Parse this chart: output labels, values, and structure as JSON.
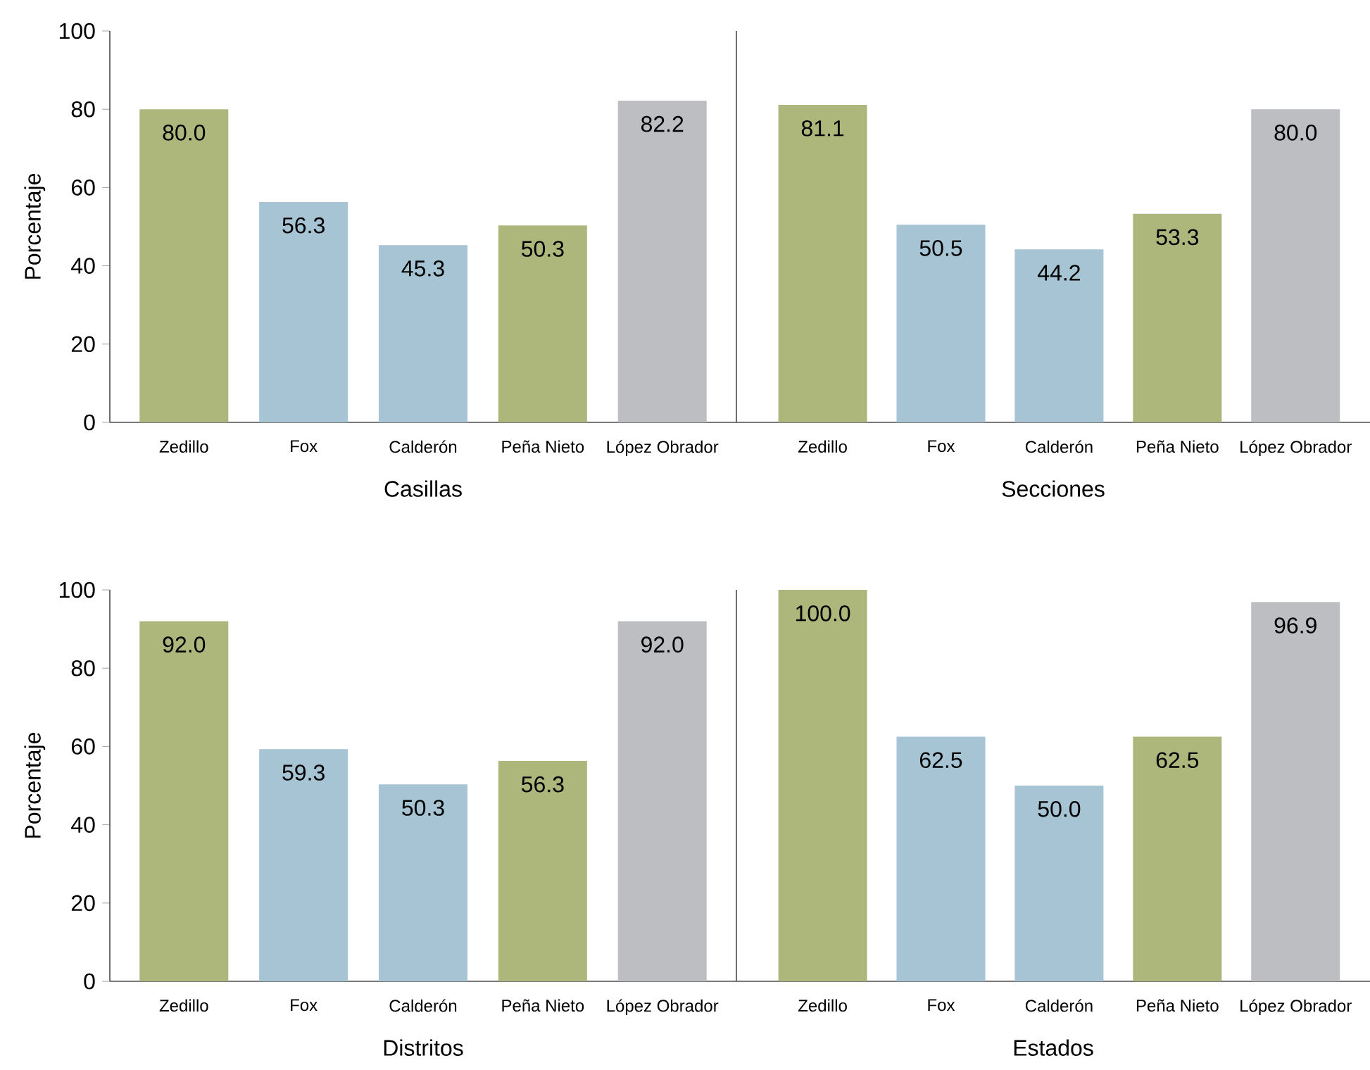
{
  "chart_data": [
    {
      "type": "bar",
      "xlabel": "Casillas",
      "ylabel": "Porcentaje",
      "categories": [
        "Zedillo",
        "Fox",
        "Calderón",
        "Peña Nieto",
        "López Obrador"
      ],
      "values": [
        80.0,
        56.3,
        45.3,
        50.3,
        82.2
      ],
      "value_labels": [
        "80.0",
        "56.3",
        "45.3",
        "50.3",
        "82.2"
      ],
      "colors": [
        "#adb77c",
        "#a6c4d3",
        "#a6c4d3",
        "#adb77c",
        "#bcbec1"
      ],
      "ylim": [
        0,
        100
      ],
      "yticks": [
        0,
        20,
        40,
        60,
        80,
        100
      ]
    },
    {
      "type": "bar",
      "xlabel": "Secciones",
      "categories": [
        "Zedillo",
        "Fox",
        "Calderón",
        "Peña Nieto",
        "López Obrador"
      ],
      "values": [
        81.1,
        50.5,
        44.2,
        53.3,
        80.0
      ],
      "value_labels": [
        "81.1",
        "50.5",
        "44.2",
        "53.3",
        "80.0"
      ],
      "colors": [
        "#adb77c",
        "#a6c4d3",
        "#a6c4d3",
        "#adb77c",
        "#bcbec1"
      ],
      "ylim": [
        0,
        100
      ],
      "tick_labels": "x"
    },
    {
      "type": "bar",
      "xlabel": "Distritos",
      "ylabel": "Porcentaje",
      "categories": [
        "Zedillo",
        "Fox",
        "Calderón",
        "Peña Nieto",
        "López Obrador"
      ],
      "values": [
        92.0,
        59.3,
        50.3,
        56.3,
        92.0
      ],
      "value_labels": [
        "92.0",
        "59.3",
        "50.3",
        "56.3",
        "92.0"
      ],
      "colors": [
        "#adb77c",
        "#a6c4d3",
        "#a6c4d3",
        "#adb77c",
        "#bcbec1"
      ],
      "ylim": [
        0,
        100
      ],
      "yticks": [
        0,
        20,
        40,
        60,
        80,
        100
      ]
    },
    {
      "type": "bar",
      "xlabel": "Estados",
      "categories": [
        "Zedillo",
        "Fox",
        "Calderón",
        "Peña Nieto",
        "López Obrador"
      ],
      "values": [
        100.0,
        62.5,
        50.0,
        62.5,
        96.9
      ],
      "value_labels": [
        "100.0",
        "62.5",
        "50.0",
        "62.5",
        "96.9"
      ],
      "colors": [
        "#adb77c",
        "#a6c4d3",
        "#a6c4d3",
        "#adb77c",
        "#bcbec1"
      ],
      "ylim": [
        0,
        100
      ],
      "tick_labels": "x"
    }
  ]
}
